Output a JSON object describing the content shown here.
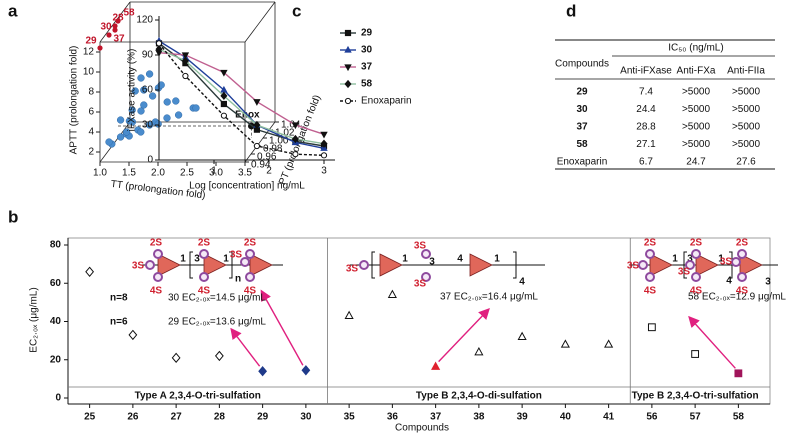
{
  "chart_data": [
    {
      "type": "scatter3d",
      "panel_label": "a",
      "xlabel": "TT (prolongation fold)",
      "ylabel": "APTT (prolongation fold)",
      "zlabel": "PT (prolongation fold)",
      "xlim": [
        1.0,
        3.5
      ],
      "ylim": [
        1,
        13
      ],
      "zlim": [
        0.94,
        1.04
      ],
      "xticks": [
        {
          "value": 1.0,
          "label": "1.0"
        },
        1.5,
        {
          "value": 2.0,
          "label": "2.0"
        },
        2.5,
        {
          "value": 3.0,
          "label": "3.0"
        },
        3.5
      ],
      "yticks": [
        2,
        4,
        6,
        8,
        10,
        12
      ],
      "zticks": [
        0.94,
        0.96,
        0.98,
        {
          "value": 1.0,
          "label": "1.00"
        },
        1.02,
        1.04
      ],
      "color": "#4a8ccd",
      "points": [
        [
          1.1,
          2.0,
          0.96
        ],
        [
          1.2,
          2.3,
          0.97
        ],
        [
          1.3,
          2.6,
          0.97
        ],
        [
          1.4,
          2.8,
          0.96
        ],
        [
          1.5,
          3.0,
          0.97
        ],
        [
          1.6,
          3.2,
          0.96
        ],
        [
          1.7,
          3.5,
          0.97
        ],
        [
          1.8,
          3.8,
          0.97
        ],
        [
          1.9,
          4.0,
          0.96
        ],
        [
          2.0,
          4.2,
          0.97
        ],
        [
          2.2,
          4.5,
          0.97
        ],
        [
          2.4,
          4.8,
          0.98
        ],
        [
          2.5,
          5.2,
          0.97
        ],
        [
          1.3,
          3.5,
          0.98
        ],
        [
          1.5,
          4.5,
          0.98
        ],
        [
          1.6,
          5.5,
          0.97
        ],
        [
          1.7,
          6.0,
          0.98
        ],
        [
          1.4,
          6.5,
          0.98
        ],
        [
          1.6,
          7.0,
          0.97
        ],
        [
          1.8,
          6.8,
          0.98
        ],
        [
          1.5,
          7.8,
          0.98
        ],
        [
          1.7,
          8.6,
          0.97
        ],
        [
          1.9,
          7.5,
          0.97
        ],
        [
          1.4,
          5.0,
          0.97
        ],
        [
          1.2,
          4.0,
          0.97
        ],
        [
          2.1,
          5.5,
          0.98
        ],
        [
          1.9,
          5.0,
          0.99
        ],
        [
          1.3,
          3.0,
          0.99
        ],
        [
          1.2,
          2.0,
          0.99
        ],
        [
          1.0,
          1.8,
          0.97
        ]
      ],
      "labeled_color": "#c0142a",
      "labeled_points": [
        {
          "label": "29",
          "x": 1.0,
          "y": 12.4,
          "z": 0.94
        },
        {
          "label": "30",
          "x": 1.0,
          "y": 12.5,
          "z": 0.97
        },
        {
          "label": "28",
          "x": 1.0,
          "y": 12.6,
          "z": 0.99
        },
        {
          "label": "58",
          "x": 1.0,
          "y": 12.7,
          "z": 1.0
        },
        {
          "label": "37",
          "x": 1.0,
          "y": 12.2,
          "z": 0.99
        }
      ],
      "reference": {
        "label": "Enox",
        "x": 3.3,
        "y": 2.2,
        "z": 1.0,
        "color": "#111111"
      }
    },
    {
      "type": "line",
      "panel_label": "c",
      "xlabel": "Log [concentration] ng/mL",
      "ylabel": "iFXase activity (%)",
      "x": [
        0,
        0.48,
        1.18,
        1.78,
        2.48,
        3
      ],
      "xlim": [
        0,
        3.2
      ],
      "xticks": [
        1,
        2,
        3
      ],
      "ylim": [
        0,
        120
      ],
      "yticks": [
        0,
        30,
        60,
        90,
        120
      ],
      "series": [
        {
          "name": "29",
          "color": "#2b3a3a",
          "marker": "square",
          "marker_color": "#111111",
          "values": [
            100,
            83,
            48,
            26,
            16,
            12
          ]
        },
        {
          "name": "30",
          "color": "#1f3f9a",
          "marker": "triangle",
          "marker_color": "#1f3f9a",
          "values": [
            102,
            88,
            60,
            30,
            15,
            10
          ]
        },
        {
          "name": "37",
          "color": "#c06090",
          "marker": "triangle-down",
          "marker_color": "#111111",
          "values": [
            92,
            90,
            75,
            50,
            30,
            22
          ]
        },
        {
          "name": "58",
          "color": "#8fbf9f",
          "marker": "diamond",
          "marker_color": "#111111",
          "values": [
            95,
            85,
            55,
            30,
            18,
            14
          ]
        },
        {
          "name": "Enoxaparin",
          "color": "#111111",
          "marker": "circle-open",
          "marker_color": "#111111",
          "dashed": true,
          "values": [
            100,
            72,
            38,
            12,
            5,
            4
          ]
        }
      ]
    },
    {
      "type": "category-scatter",
      "panel_label": "b",
      "xlabel": "Compounds",
      "ylabel": "EC₂.₀ₓ (μg/mL)",
      "categories": [
        "25",
        "26",
        "27",
        "28",
        "29",
        "30",
        "35",
        "36",
        "37",
        "38",
        "39",
        "40",
        "41",
        "56",
        "57",
        "58"
      ],
      "values": [
        66,
        33,
        21,
        22,
        14,
        14.5,
        43,
        54,
        16.4,
        24,
        32,
        28,
        28,
        37,
        23,
        12.9
      ],
      "shapes": [
        "diamond",
        "diamond",
        "diamond",
        "diamond",
        "diamond",
        "diamond",
        "triangle",
        "triangle",
        "triangle",
        "triangle",
        "triangle",
        "triangle",
        "triangle",
        "square",
        "square",
        "square"
      ],
      "fills": [
        "none",
        "none",
        "none",
        "none",
        "#1f3a8a",
        "#1f3a8a",
        "none",
        "none",
        "#e0202f",
        "none",
        "none",
        "none",
        "none",
        "none",
        "none",
        "#a0155a"
      ],
      "ylim": [
        0,
        80
      ],
      "yticks": [
        0,
        20,
        40,
        60,
        80
      ],
      "sections": [
        "Type A 2,3,4-O-tri-sulfation",
        "Type B 2,3,4-O-di-sulfation",
        "Type B 2,3,4-O-tri-sulfation"
      ],
      "annotations": [
        "n=8",
        "30 EC₂.₀ₓ=14.5 μg/mL",
        "n=6",
        "29 EC₂.₀ₓ=13.6 μg/mL",
        "37 EC₂.₀ₓ=16.4 μg/mL",
        "58 EC₂.₀ₓ=12.9 μg/mL"
      ],
      "structures": [
        [
          "2S",
          "3S",
          "4S",
          "1",
          "3",
          "2S",
          "4S",
          "1",
          "n",
          "2S",
          "3S",
          "4S"
        ],
        [
          "3S",
          "1",
          "3S",
          "3",
          "3S",
          "4",
          "1",
          "4"
        ],
        [
          "2S",
          "3S",
          "4S",
          "1",
          "3",
          "2S",
          "3S",
          "4S",
          "1",
          "4",
          "2S",
          "3S",
          "4S",
          "3"
        ]
      ]
    }
  ],
  "table": {
    "panel_label": "d",
    "header": "IC₅₀ (ng/mL)",
    "columns": [
      "Compounds",
      "Anti-iFXase",
      "Anti-FXa",
      "Anti-FIIa"
    ],
    "rows": [
      [
        "29",
        "7.4",
        ">5000",
        ">5000"
      ],
      [
        "30",
        "24.4",
        ">5000",
        ">5000"
      ],
      [
        "37",
        "28.8",
        ">5000",
        ">5000"
      ],
      [
        "58",
        "27.1",
        ">5000",
        ">5000"
      ],
      [
        "Enoxaparin",
        "6.7",
        "24.7",
        "27.6"
      ]
    ]
  }
}
